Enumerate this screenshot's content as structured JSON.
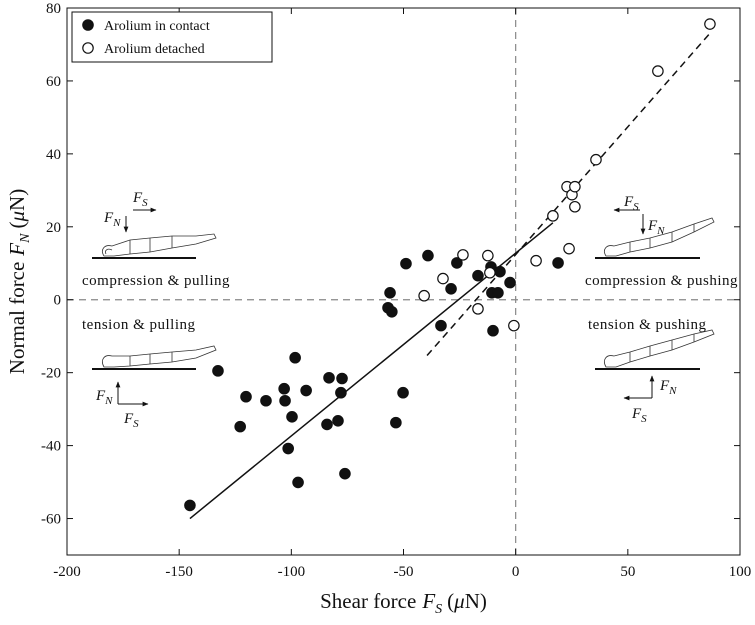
{
  "chart_data": {
    "type": "scatter",
    "xlabel": {
      "text": "Shear force",
      "symbol": "F",
      "sub": "S",
      "unit_open": "(",
      "unit_mu": "μ",
      "unit_close": "N)"
    },
    "ylabel": {
      "text": "Normal force",
      "symbol": "F",
      "sub": "N",
      "unit_open": "(",
      "unit_mu": "μ",
      "unit_close": "N)"
    },
    "xlim": [
      -200,
      100
    ],
    "xticks": [
      -200,
      -150,
      -100,
      -50,
      0,
      50,
      100
    ],
    "ylim": [
      -70,
      80
    ],
    "yticks": [
      -60,
      -40,
      -20,
      0,
      20,
      40,
      60,
      80
    ],
    "zero_lines": true,
    "legend": "upper left",
    "series": [
      {
        "name": "Arolium in contact",
        "marker": "filled",
        "color": "#111111",
        "x": [
          -145.2,
          -132.7,
          -120.2,
          -122.8,
          -111.3,
          -103.2,
          -102.8,
          -101.4,
          -99.7,
          -98.3,
          -97.0,
          -93.4,
          -83.2,
          -84.1,
          -79.2,
          -77.9,
          -77.4,
          -76.1,
          -53.4,
          -50.2,
          -56.9,
          -56.0,
          -55.2,
          -48.9,
          -39.1,
          -33.3,
          -28.8,
          -26.2,
          -16.8,
          -11.0,
          -10.6,
          -10.1,
          -7.9,
          -7.0,
          -2.5,
          18.9
        ],
        "values": [
          -56.4,
          -19.5,
          -26.6,
          -34.8,
          -27.7,
          -24.4,
          -27.7,
          -40.8,
          -32.1,
          -15.9,
          -50.1,
          -24.9,
          -21.4,
          -34.2,
          -33.2,
          -25.5,
          -21.6,
          -47.7,
          -33.7,
          -25.5,
          -2.2,
          1.9,
          -3.3,
          9.9,
          12.1,
          -7.1,
          3.0,
          10.1,
          6.6,
          9.0,
          1.9,
          -8.5,
          1.9,
          7.7,
          4.7,
          10.1
        ]
      },
      {
        "name": "Arolium detached",
        "marker": "open",
        "color": "#111111",
        "x": [
          -40.8,
          -32.4,
          -23.5,
          -16.8,
          -12.4,
          -11.5,
          -0.8,
          9.1,
          16.6,
          22.9,
          25.1,
          26.4,
          26.4,
          23.8,
          35.8,
          63.4,
          86.6
        ],
        "values": [
          1.1,
          5.8,
          12.3,
          -2.5,
          12.1,
          7.4,
          -7.1,
          10.7,
          23.0,
          31.0,
          28.8,
          31.0,
          25.5,
          14.0,
          38.4,
          62.7,
          75.6
        ]
      }
    ],
    "fits": [
      {
        "dash": false,
        "color": "#111111",
        "x": [
          -145.2,
          16.6
        ],
        "values": [
          -60.0,
          21.1
        ]
      },
      {
        "dash": true,
        "color": "#111111",
        "x": [
          -39.5,
          87.5
        ],
        "values": [
          -15.3,
          73.7
        ]
      }
    ],
    "annotations": {
      "compression_pulling": "compression & pulling",
      "tension_pulling": "tension & pulling",
      "compression_pushing": "compression & pushing",
      "tension_pushing": "tension & pushing"
    },
    "force_symbol": "F",
    "normal_sub": "N",
    "shear_sub": "S"
  }
}
